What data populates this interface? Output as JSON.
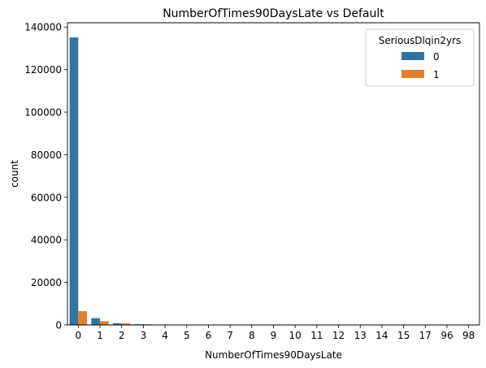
{
  "chart_data": {
    "type": "bar",
    "title": "NumberOfTimes90DaysLate vs Default",
    "xlabel": "NumberOfTimes90DaysLate",
    "ylabel": "count",
    "categories": [
      "0",
      "1",
      "2",
      "3",
      "4",
      "5",
      "6",
      "7",
      "8",
      "9",
      "10",
      "11",
      "12",
      "13",
      "14",
      "15",
      "17",
      "96",
      "98"
    ],
    "series": [
      {
        "name": "0",
        "color": "#3274a1",
        "values": [
          135100,
          3200,
          800,
          350,
          170,
          60,
          40,
          20,
          10,
          10,
          5,
          0,
          0,
          0,
          0,
          0,
          0,
          0,
          130
        ]
      },
      {
        "name": "1",
        "color": "#e1812c",
        "values": [
          6500,
          1800,
          700,
          300,
          200,
          60,
          40,
          20,
          10,
          10,
          5,
          0,
          0,
          0,
          0,
          0,
          0,
          0,
          130
        ]
      }
    ],
    "yticks": [
      "0",
      "20000",
      "40000",
      "60000",
      "80000",
      "100000",
      "120000",
      "140000"
    ],
    "ylim": [
      0,
      142000
    ],
    "grid": false,
    "legend": {
      "title": "SeriousDlqin2yrs",
      "placement": "top-right"
    }
  }
}
